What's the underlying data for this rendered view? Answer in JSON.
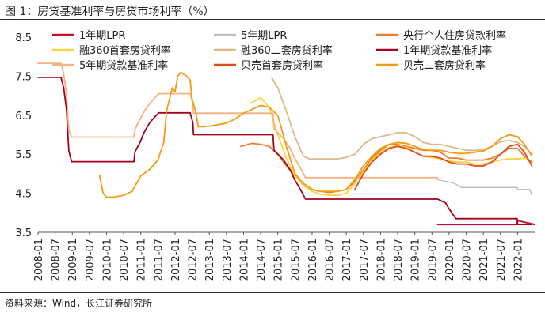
{
  "figure_title": "图 1：房贷基准利率与房贷市场利率（%）",
  "source_note": "资料来源：Wind，长江证券研究所",
  "chart_data": {
    "type": "line",
    "title": "图 1：房贷基准利率与房贷市场利率（%）",
    "xlabel": "",
    "ylabel": "",
    "ylim": [
      3.5,
      8.5
    ],
    "yticks": [
      3.5,
      4.5,
      5.5,
      6.5,
      7.5,
      8.5
    ],
    "ytick_labels": [
      "3.5",
      "4.5",
      "5.5",
      "6.5",
      "7.5",
      "8.5"
    ],
    "xlim": [
      2008.0,
      2022.5
    ],
    "xticks": [
      "2008-01",
      "2008-07",
      "2009-01",
      "2009-07",
      "2010-01",
      "2010-07",
      "2011-01",
      "2011-07",
      "2012-01",
      "2012-07",
      "2013-01",
      "2013-07",
      "2014-01",
      "2014-07",
      "2015-01",
      "2015-07",
      "2016-01",
      "2016-07",
      "2017-01",
      "2017-07",
      "2018-01",
      "2018-07",
      "2019-01",
      "2019-07",
      "2020-01",
      "2020-07",
      "2021-01",
      "2021-07",
      "2022-01"
    ],
    "grid": false,
    "legend_position": "top-right",
    "series": [
      {
        "name": "1年期LPR",
        "color": "#c8102e",
        "width": 2,
        "points": [
          [
            2019.67,
            3.7
          ],
          [
            2021.99,
            3.7
          ],
          [
            2022.0,
            3.8
          ],
          [
            2022.5,
            3.7
          ]
        ]
      },
      {
        "name": "5年期LPR",
        "color": "#bfbfbf",
        "width": 1.5,
        "points": [
          [
            2019.67,
            4.85
          ],
          [
            2019.92,
            4.8
          ],
          [
            2020.17,
            4.75
          ],
          [
            2020.35,
            4.65
          ],
          [
            2021.99,
            4.65
          ],
          [
            2022.0,
            4.6
          ],
          [
            2022.36,
            4.6
          ],
          [
            2022.42,
            4.45
          ]
        ]
      },
      {
        "name": "央行个人住房贷款利率",
        "color": "#ed7d31",
        "width": 1.8,
        "points": [
          [
            2013.92,
            5.7
          ],
          [
            2014.25,
            5.78
          ],
          [
            2014.5,
            5.75
          ],
          [
            2014.75,
            5.7
          ],
          [
            2015.0,
            5.5
          ],
          [
            2015.25,
            5.2
          ],
          [
            2015.5,
            4.95
          ],
          [
            2015.75,
            4.75
          ],
          [
            2016.0,
            4.6
          ],
          [
            2016.25,
            4.55
          ],
          [
            2016.5,
            4.52
          ],
          [
            2016.75,
            4.55
          ],
          [
            2017.0,
            4.6
          ],
          [
            2017.25,
            4.8
          ],
          [
            2017.5,
            5.1
          ],
          [
            2017.75,
            5.4
          ],
          [
            2018.0,
            5.6
          ],
          [
            2018.25,
            5.75
          ],
          [
            2018.5,
            5.75
          ],
          [
            2018.75,
            5.7
          ],
          [
            2019.0,
            5.65
          ],
          [
            2019.25,
            5.6
          ],
          [
            2019.5,
            5.6
          ],
          [
            2019.75,
            5.55
          ],
          [
            2020.0,
            5.4
          ],
          [
            2020.25,
            5.4
          ],
          [
            2020.5,
            5.35
          ],
          [
            2020.75,
            5.35
          ],
          [
            2021.0,
            5.35
          ],
          [
            2021.25,
            5.4
          ],
          [
            2021.5,
            5.5
          ],
          [
            2021.75,
            5.65
          ],
          [
            2022.0,
            5.65
          ],
          [
            2022.25,
            5.4
          ],
          [
            2022.42,
            5.3
          ]
        ]
      },
      {
        "name": "融360首套房贷利率",
        "color": "#ffd43b",
        "width": 1.8,
        "points": [
          [
            2014.2,
            6.8
          ],
          [
            2014.5,
            6.95
          ],
          [
            2014.75,
            6.7
          ],
          [
            2015.0,
            6.0
          ],
          [
            2015.25,
            5.4
          ],
          [
            2015.5,
            4.95
          ],
          [
            2015.75,
            4.7
          ],
          [
            2016.0,
            4.55
          ],
          [
            2016.25,
            4.48
          ],
          [
            2016.5,
            4.45
          ],
          [
            2016.75,
            4.45
          ],
          [
            2017.0,
            4.5
          ],
          [
            2017.2,
            4.7
          ],
          [
            2017.5,
            5.05
          ],
          [
            2017.75,
            5.35
          ],
          [
            2018.0,
            5.55
          ],
          [
            2018.25,
            5.67
          ],
          [
            2018.5,
            5.72
          ],
          [
            2018.75,
            5.68
          ],
          [
            2019.0,
            5.55
          ],
          [
            2019.25,
            5.45
          ],
          [
            2019.5,
            5.42
          ],
          [
            2019.75,
            5.38
          ],
          [
            2020.0,
            5.33
          ],
          [
            2020.25,
            5.3
          ],
          [
            2020.5,
            5.3
          ],
          [
            2020.75,
            5.25
          ],
          [
            2021.0,
            5.25
          ],
          [
            2021.25,
            5.3
          ],
          [
            2021.5,
            5.35
          ],
          [
            2021.75,
            5.38
          ],
          [
            2022.0,
            5.38
          ],
          [
            2022.3,
            5.4
          ]
        ]
      },
      {
        "name": "融360二套房贷利率",
        "color": "#deb887",
        "width": 1.8,
        "points": [
          [
            2014.83,
            7.45
          ],
          [
            2015.0,
            7.2
          ],
          [
            2015.25,
            6.6
          ],
          [
            2015.5,
            5.95
          ],
          [
            2015.75,
            5.45
          ],
          [
            2015.92,
            5.38
          ],
          [
            2016.25,
            5.38
          ],
          [
            2016.5,
            5.38
          ],
          [
            2016.75,
            5.38
          ],
          [
            2017.0,
            5.42
          ],
          [
            2017.25,
            5.5
          ],
          [
            2017.5,
            5.75
          ],
          [
            2017.75,
            5.9
          ],
          [
            2018.0,
            5.95
          ],
          [
            2018.25,
            6.0
          ],
          [
            2018.5,
            6.05
          ],
          [
            2018.75,
            6.05
          ],
          [
            2019.0,
            5.95
          ],
          [
            2019.25,
            5.8
          ],
          [
            2019.5,
            5.75
          ],
          [
            2019.75,
            5.75
          ],
          [
            2020.0,
            5.7
          ],
          [
            2020.25,
            5.65
          ],
          [
            2020.5,
            5.6
          ],
          [
            2020.75,
            5.6
          ],
          [
            2021.0,
            5.62
          ],
          [
            2021.25,
            5.7
          ],
          [
            2021.5,
            5.82
          ],
          [
            2021.75,
            5.85
          ],
          [
            2022.0,
            5.8
          ],
          [
            2022.2,
            5.7
          ],
          [
            2022.42,
            5.5
          ]
        ]
      },
      {
        "name": "1年期贷款基准利率",
        "color": "#a5001e",
        "width": 1.8,
        "points": [
          [
            2008.0,
            7.47
          ],
          [
            2008.67,
            7.47
          ],
          [
            2008.75,
            7.2
          ],
          [
            2008.83,
            6.66
          ],
          [
            2008.9,
            5.58
          ],
          [
            2008.98,
            5.31
          ],
          [
            2010.8,
            5.31
          ],
          [
            2010.83,
            5.56
          ],
          [
            2010.98,
            5.81
          ],
          [
            2011.1,
            6.06
          ],
          [
            2011.26,
            6.31
          ],
          [
            2011.52,
            6.56
          ],
          [
            2012.44,
            6.56
          ],
          [
            2012.52,
            6.31
          ],
          [
            2012.54,
            6.0
          ],
          [
            2014.86,
            6.0
          ],
          [
            2014.89,
            5.6
          ],
          [
            2015.17,
            5.35
          ],
          [
            2015.36,
            5.1
          ],
          [
            2015.49,
            4.85
          ],
          [
            2015.66,
            4.6
          ],
          [
            2015.81,
            4.35
          ],
          [
            2019.67,
            4.35
          ],
          [
            2019.9,
            4.25
          ],
          [
            2020.0,
            4.1
          ],
          [
            2020.2,
            3.85
          ],
          [
            2021.99,
            3.85
          ],
          [
            2022.0,
            3.7
          ],
          [
            2022.42,
            3.7
          ]
        ]
      },
      {
        "name": "5年期贷款基准利率",
        "color": "#f4b183",
        "width": 1.8,
        "points": [
          [
            2008.0,
            7.83
          ],
          [
            2008.67,
            7.83
          ],
          [
            2008.75,
            7.56
          ],
          [
            2008.83,
            7.02
          ],
          [
            2008.9,
            6.12
          ],
          [
            2008.98,
            5.94
          ],
          [
            2010.8,
            5.94
          ],
          [
            2010.83,
            6.14
          ],
          [
            2010.98,
            6.4
          ],
          [
            2011.1,
            6.6
          ],
          [
            2011.26,
            6.8
          ],
          [
            2011.52,
            7.05
          ],
          [
            2012.44,
            7.05
          ],
          [
            2012.52,
            6.8
          ],
          [
            2012.54,
            6.55
          ],
          [
            2014.86,
            6.55
          ],
          [
            2014.89,
            6.15
          ],
          [
            2015.17,
            5.9
          ],
          [
            2015.36,
            5.65
          ],
          [
            2015.49,
            5.4
          ],
          [
            2015.66,
            5.15
          ],
          [
            2015.81,
            4.9
          ],
          [
            2019.67,
            4.9
          ]
        ]
      },
      {
        "name": "贝壳首套房贷利率",
        "color": "#e64a19",
        "width": 1.8,
        "points": [
          [
            2017.25,
            4.6
          ],
          [
            2017.5,
            5.0
          ],
          [
            2017.75,
            5.3
          ],
          [
            2018.0,
            5.5
          ],
          [
            2018.25,
            5.65
          ],
          [
            2018.5,
            5.7
          ],
          [
            2018.75,
            5.65
          ],
          [
            2019.0,
            5.55
          ],
          [
            2019.25,
            5.45
          ],
          [
            2019.5,
            5.45
          ],
          [
            2019.75,
            5.4
          ],
          [
            2020.0,
            5.3
          ],
          [
            2020.25,
            5.25
          ],
          [
            2020.5,
            5.25
          ],
          [
            2020.75,
            5.2
          ],
          [
            2021.0,
            5.2
          ],
          [
            2021.25,
            5.3
          ],
          [
            2021.5,
            5.5
          ],
          [
            2021.75,
            5.7
          ],
          [
            2022.0,
            5.75
          ],
          [
            2022.2,
            5.55
          ],
          [
            2022.42,
            5.2
          ]
        ]
      },
      {
        "name": "贝壳二套房贷利率",
        "color": "#f39c12",
        "width": 1.8,
        "points": [
          [
            2009.8,
            4.95
          ],
          [
            2009.9,
            4.5
          ],
          [
            2010.0,
            4.4
          ],
          [
            2010.2,
            4.4
          ],
          [
            2010.5,
            4.45
          ],
          [
            2010.75,
            4.55
          ],
          [
            2011.0,
            4.95
          ],
          [
            2011.25,
            5.1
          ],
          [
            2011.5,
            5.35
          ],
          [
            2011.67,
            5.8
          ],
          [
            2011.75,
            6.6
          ],
          [
            2011.92,
            7.2
          ],
          [
            2012.0,
            7.1
          ],
          [
            2012.08,
            7.5
          ],
          [
            2012.17,
            7.6
          ],
          [
            2012.25,
            7.55
          ],
          [
            2012.34,
            7.5
          ],
          [
            2012.44,
            7.4
          ],
          [
            2012.5,
            6.9
          ],
          [
            2012.6,
            6.6
          ],
          [
            2012.68,
            6.2
          ],
          [
            2013.0,
            6.22
          ],
          [
            2013.25,
            6.26
          ],
          [
            2013.5,
            6.3
          ],
          [
            2013.75,
            6.4
          ],
          [
            2014.0,
            6.55
          ],
          [
            2014.25,
            6.65
          ],
          [
            2014.5,
            6.75
          ],
          [
            2014.75,
            6.7
          ],
          [
            2015.0,
            6.5
          ],
          [
            2015.25,
            5.7
          ],
          [
            2015.5,
            5.0
          ],
          [
            2015.75,
            4.75
          ],
          [
            2016.0,
            4.6
          ],
          [
            2016.25,
            4.55
          ],
          [
            2016.5,
            4.55
          ],
          [
            2016.75,
            4.55
          ],
          [
            2017.0,
            4.6
          ],
          [
            2017.25,
            4.85
          ],
          [
            2017.5,
            5.2
          ],
          [
            2017.75,
            5.45
          ],
          [
            2018.0,
            5.65
          ],
          [
            2018.25,
            5.75
          ],
          [
            2018.5,
            5.8
          ],
          [
            2018.75,
            5.78
          ],
          [
            2019.0,
            5.7
          ],
          [
            2019.25,
            5.62
          ],
          [
            2019.5,
            5.6
          ],
          [
            2019.75,
            5.6
          ],
          [
            2020.0,
            5.55
          ],
          [
            2020.25,
            5.52
          ],
          [
            2020.5,
            5.52
          ],
          [
            2020.75,
            5.55
          ],
          [
            2021.0,
            5.58
          ],
          [
            2021.25,
            5.7
          ],
          [
            2021.5,
            5.9
          ],
          [
            2021.75,
            6.0
          ],
          [
            2022.0,
            5.95
          ],
          [
            2022.2,
            5.75
          ],
          [
            2022.42,
            5.45
          ]
        ]
      }
    ]
  }
}
